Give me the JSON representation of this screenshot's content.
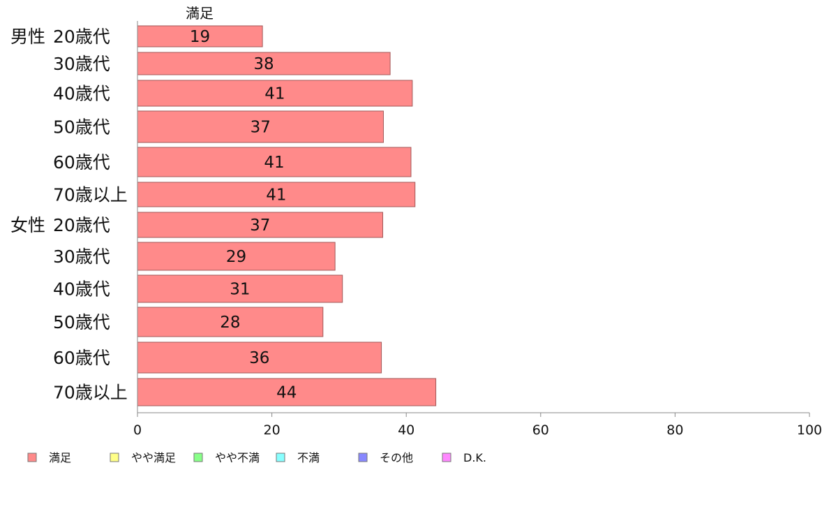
{
  "chart_data": {
    "type": "bar",
    "orientation": "horizontal",
    "column_title": "満足",
    "groups": [
      {
        "label": "男性",
        "start_index": 0
      },
      {
        "label": "女性",
        "start_index": 6
      }
    ],
    "categories": [
      "20歳代",
      "30歳代",
      "40歳代",
      "50歳代",
      "60歳代",
      "70歳以上",
      "20歳代",
      "30歳代",
      "40歳代",
      "50歳代",
      "60歳代",
      "70歳以上"
    ],
    "series": [
      {
        "name": "満足",
        "color": "#ff8a8a",
        "values": [
          18.6,
          37.6,
          40.9,
          36.6,
          40.7,
          41.3,
          36.5,
          29.4,
          30.5,
          27.6,
          36.3,
          44.4
        ],
        "labels": [
          "19",
          "38",
          "41",
          "37",
          "41",
          "41",
          "37",
          "29",
          "31",
          "28",
          "36",
          "44"
        ]
      }
    ],
    "xlim": [
      0,
      100
    ],
    "xticks": [
      0,
      20,
      40,
      60,
      80,
      100
    ],
    "legend_position": "bottom",
    "legend": [
      {
        "label": "満足",
        "color": "#ff8a8a"
      },
      {
        "label": "やや満足",
        "color": "#ffff88"
      },
      {
        "label": "やや不満",
        "color": "#88ff88"
      },
      {
        "label": "不満",
        "color": "#88ffff"
      },
      {
        "label": "その他",
        "color": "#8888ff"
      },
      {
        "label": "D.K.",
        "color": "#ff88ff"
      }
    ]
  }
}
